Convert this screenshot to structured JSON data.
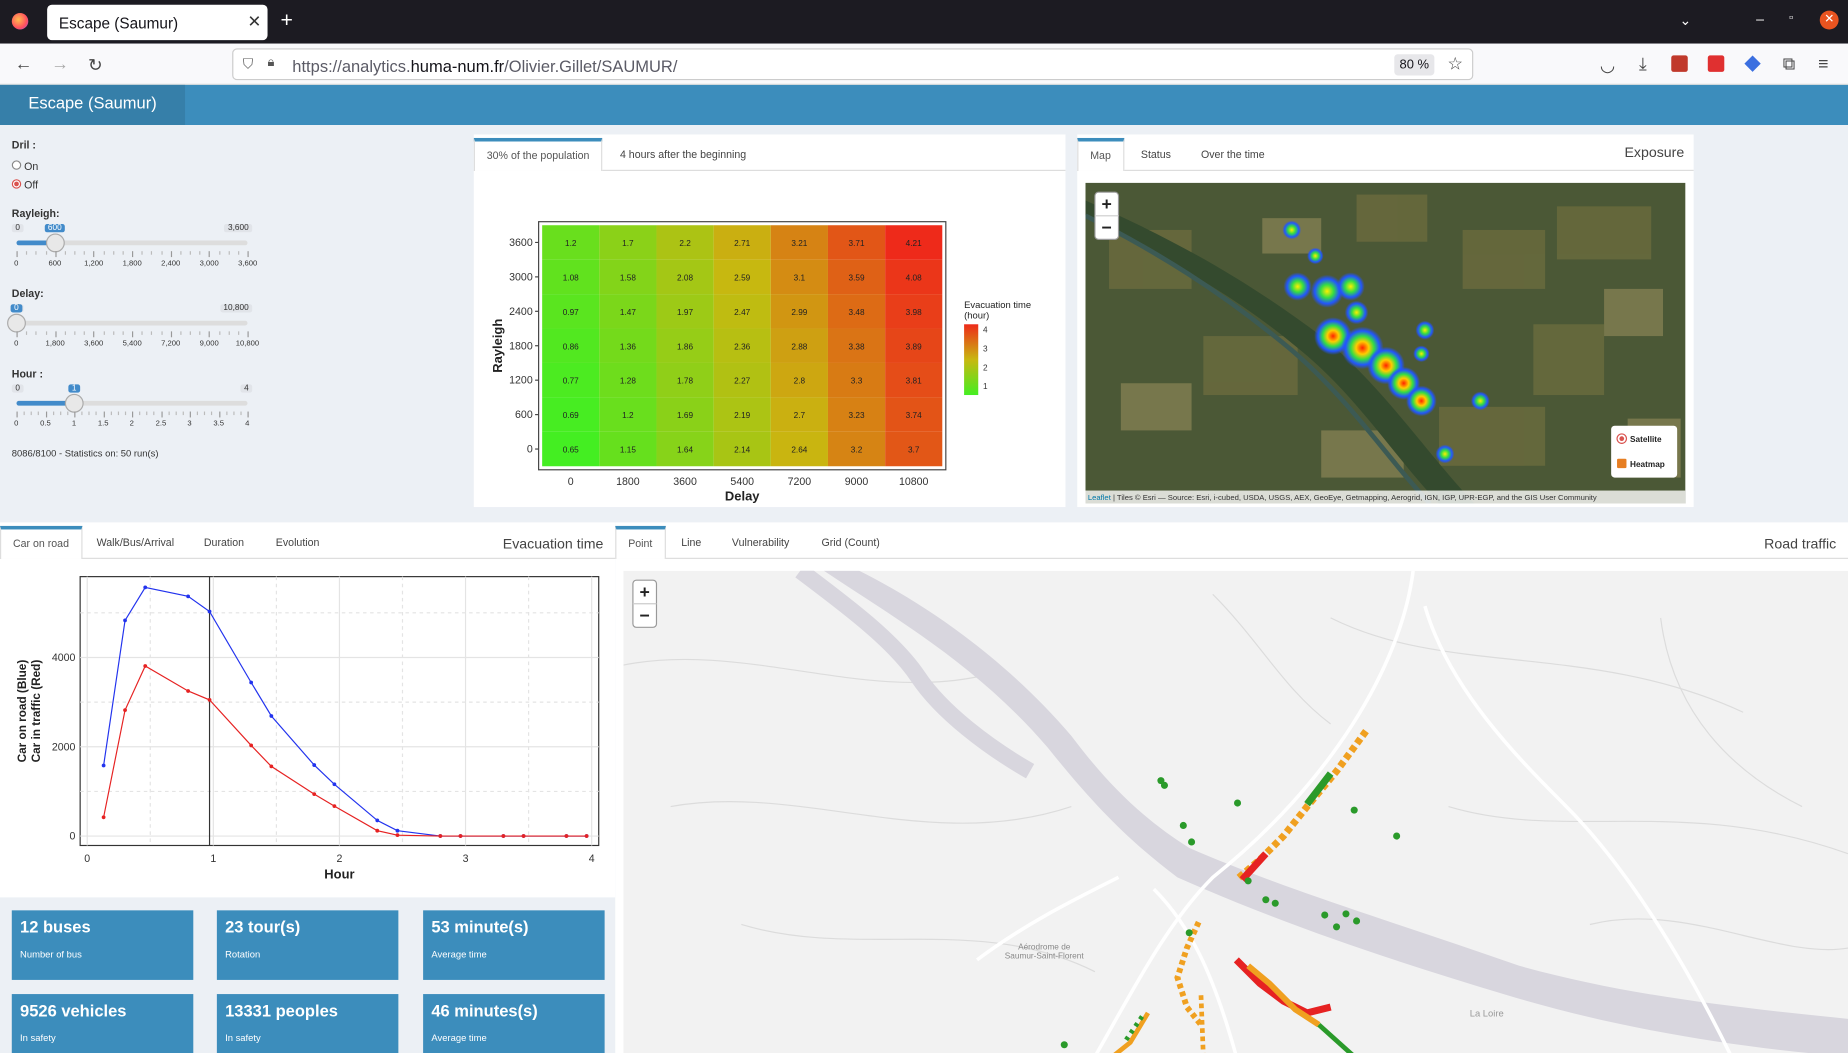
{
  "browser": {
    "tab_title": "Escape (Saumur)",
    "url_pre": "https://analytics.",
    "url_host": "huma-num.fr",
    "url_path": "/Olivier.Gillet/SAUMUR/",
    "zoom": "80 %"
  },
  "app": {
    "brand": "Escape (Saumur)"
  },
  "sidebar": {
    "drill_label": "Dril :",
    "drill_on": "On",
    "drill_off": "Off",
    "drill_selected": "Off",
    "rayleigh": {
      "label": "Rayleigh:",
      "min": "0",
      "max": "3,600",
      "value": "600",
      "fraction": 0.1667,
      "ticks": [
        "0",
        "600",
        "1,200",
        "1,800",
        "2,400",
        "3,000",
        "3,600"
      ]
    },
    "delay": {
      "label": "Delay:",
      "min": "0",
      "max": "10,800",
      "value": "0",
      "fraction": 0,
      "ticks": [
        "0",
        "1,800",
        "3,600",
        "5,400",
        "7,200",
        "9,000",
        "10,800"
      ]
    },
    "hour": {
      "label": "Hour :",
      "min": "0",
      "max": "4",
      "value": "1",
      "fraction": 0.25,
      "ticks": [
        "0",
        "0.5",
        "1",
        "1.5",
        "2",
        "2.5",
        "3",
        "3.5",
        "4"
      ]
    },
    "status": "8086/8100 - Statistics on: 50 run(s)"
  },
  "heat_panel": {
    "tabs": [
      "30% of the population",
      "4 hours after the beginning"
    ],
    "legend_title_1": "Evacuation time",
    "legend_title_2": "(hour)",
    "legend_ticks": [
      "4",
      "3",
      "2",
      "1"
    ],
    "colors": {
      "low": "#44ee22",
      "high": "#ee2a1a"
    }
  },
  "chart_data": [
    {
      "type": "heatmap",
      "xlabel": "Delay",
      "ylabel": "Rayleigh",
      "x": [
        "0",
        "1800",
        "3600",
        "5400",
        "7200",
        "9000",
        "10800"
      ],
      "y": [
        "3600",
        "3000",
        "2400",
        "1800",
        "1200",
        "600",
        "0"
      ],
      "values": [
        [
          1.2,
          1.7,
          2.2,
          2.71,
          3.21,
          3.71,
          4.21
        ],
        [
          1.08,
          1.58,
          2.08,
          2.59,
          3.1,
          3.59,
          4.08
        ],
        [
          0.97,
          1.47,
          1.97,
          2.47,
          2.99,
          3.48,
          3.98
        ],
        [
          0.86,
          1.36,
          1.86,
          2.36,
          2.88,
          3.38,
          3.89
        ],
        [
          0.77,
          1.28,
          1.78,
          2.27,
          2.8,
          3.3,
          3.81
        ],
        [
          0.69,
          1.2,
          1.69,
          2.19,
          2.7,
          3.23,
          3.74
        ],
        [
          0.65,
          1.15,
          1.64,
          2.14,
          2.64,
          3.2,
          3.7
        ]
      ]
    },
    {
      "type": "line",
      "xlabel": "Hour",
      "ylabel_1": "Car on road (Blue)",
      "ylabel_2": "Car in traffic (Red)",
      "xlim": [
        0,
        4
      ],
      "ylim": [
        0,
        5600
      ],
      "xticks": [
        "0",
        "1",
        "2",
        "3",
        "4"
      ],
      "yticks": [
        "0",
        "2000",
        "4000"
      ],
      "vline_x": 0.97,
      "series": [
        {
          "color": "#2233ee",
          "x": [
            0.13,
            0.3,
            0.46,
            0.8,
            0.97,
            1.3,
            1.46,
            1.8,
            1.96,
            2.3,
            2.46,
            2.8,
            2.96,
            3.3,
            3.46,
            3.8,
            3.96
          ],
          "y": [
            1580,
            4830,
            5570,
            5370,
            5030,
            3440,
            2690,
            1590,
            1160,
            350,
            120,
            0,
            0,
            0,
            0,
            0,
            0
          ]
        },
        {
          "color": "#e62222",
          "x": [
            0.13,
            0.3,
            0.46,
            0.8,
            0.97,
            1.3,
            1.46,
            1.8,
            1.96,
            2.3,
            2.46,
            2.8,
            2.96,
            3.3,
            3.46,
            3.8,
            3.96
          ],
          "y": [
            420,
            2820,
            3810,
            3250,
            3050,
            2030,
            1560,
            940,
            670,
            120,
            20,
            0,
            0,
            0,
            0,
            0,
            0
          ]
        }
      ]
    }
  ],
  "exposure": {
    "tabs": [
      "Map",
      "Status",
      "Over the time"
    ],
    "title": "Exposure",
    "layer1": "Satellite",
    "layer2": "Heatmap",
    "attribution_link": "Leaflet",
    "attribution": " | Tiles © Esri — Source: Esri, i-cubed, USDA, USGS, AEX, GeoEye, Getmapping, Aerogrid, IGN, IGP, UPR-EGP, and the GIS User Community"
  },
  "evac": {
    "tabs": [
      "Car on road",
      "Walk/Bus/Arrival",
      "Duration",
      "Evolution"
    ],
    "title": "Evacuation time"
  },
  "stats": [
    {
      "value": "12 buses",
      "sub": "Number of bus"
    },
    {
      "value": "23 tour(s)",
      "sub": "Rotation"
    },
    {
      "value": "53 minute(s)",
      "sub": "Average time"
    },
    {
      "value": "9526 vehicles",
      "sub": "In safety"
    },
    {
      "value": "13331 peoples",
      "sub": "In safety"
    },
    {
      "value": "46 minutes(s)",
      "sub": "Average time"
    }
  ],
  "traffic": {
    "tabs": [
      "Point",
      "Line",
      "Vulnerability",
      "Grid (Count)"
    ],
    "title": "Road traffic",
    "place1": "Aérodrome de",
    "place2": "Saumur-Saint-Florent",
    "river": "La Loire"
  }
}
